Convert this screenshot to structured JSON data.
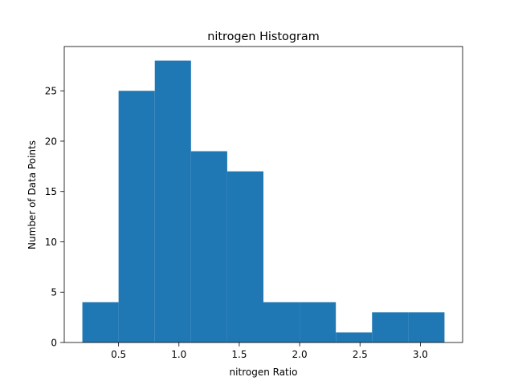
{
  "chart_data": {
    "type": "bar",
    "title": "nitrogen Histogram",
    "xlabel": "nitrogen Ratio",
    "ylabel": "Number of Data Points",
    "bins": [
      {
        "x0": 0.2,
        "x1": 0.5,
        "count": 4
      },
      {
        "x0": 0.5,
        "x1": 0.8,
        "count": 25
      },
      {
        "x0": 0.8,
        "x1": 1.1,
        "count": 28
      },
      {
        "x0": 1.1,
        "x1": 1.4,
        "count": 19
      },
      {
        "x0": 1.4,
        "x1": 1.7,
        "count": 17
      },
      {
        "x0": 1.7,
        "x1": 2.0,
        "count": 4
      },
      {
        "x0": 2.0,
        "x1": 2.3,
        "count": 4
      },
      {
        "x0": 2.3,
        "x1": 2.6,
        "count": 1
      },
      {
        "x0": 2.6,
        "x1": 2.9,
        "count": 3
      },
      {
        "x0": 2.9,
        "x1": 3.2,
        "count": 3
      }
    ],
    "xticks": [
      "0.5",
      "1.0",
      "1.5",
      "2.0",
      "2.5",
      "3.0"
    ],
    "yticks": [
      "0",
      "5",
      "10",
      "15",
      "20",
      "25"
    ],
    "xlim": [
      0.05,
      3.35
    ],
    "ylim": [
      0,
      29.4
    ],
    "grid": false,
    "legend": "none",
    "bar_color": "#1f77b4"
  }
}
